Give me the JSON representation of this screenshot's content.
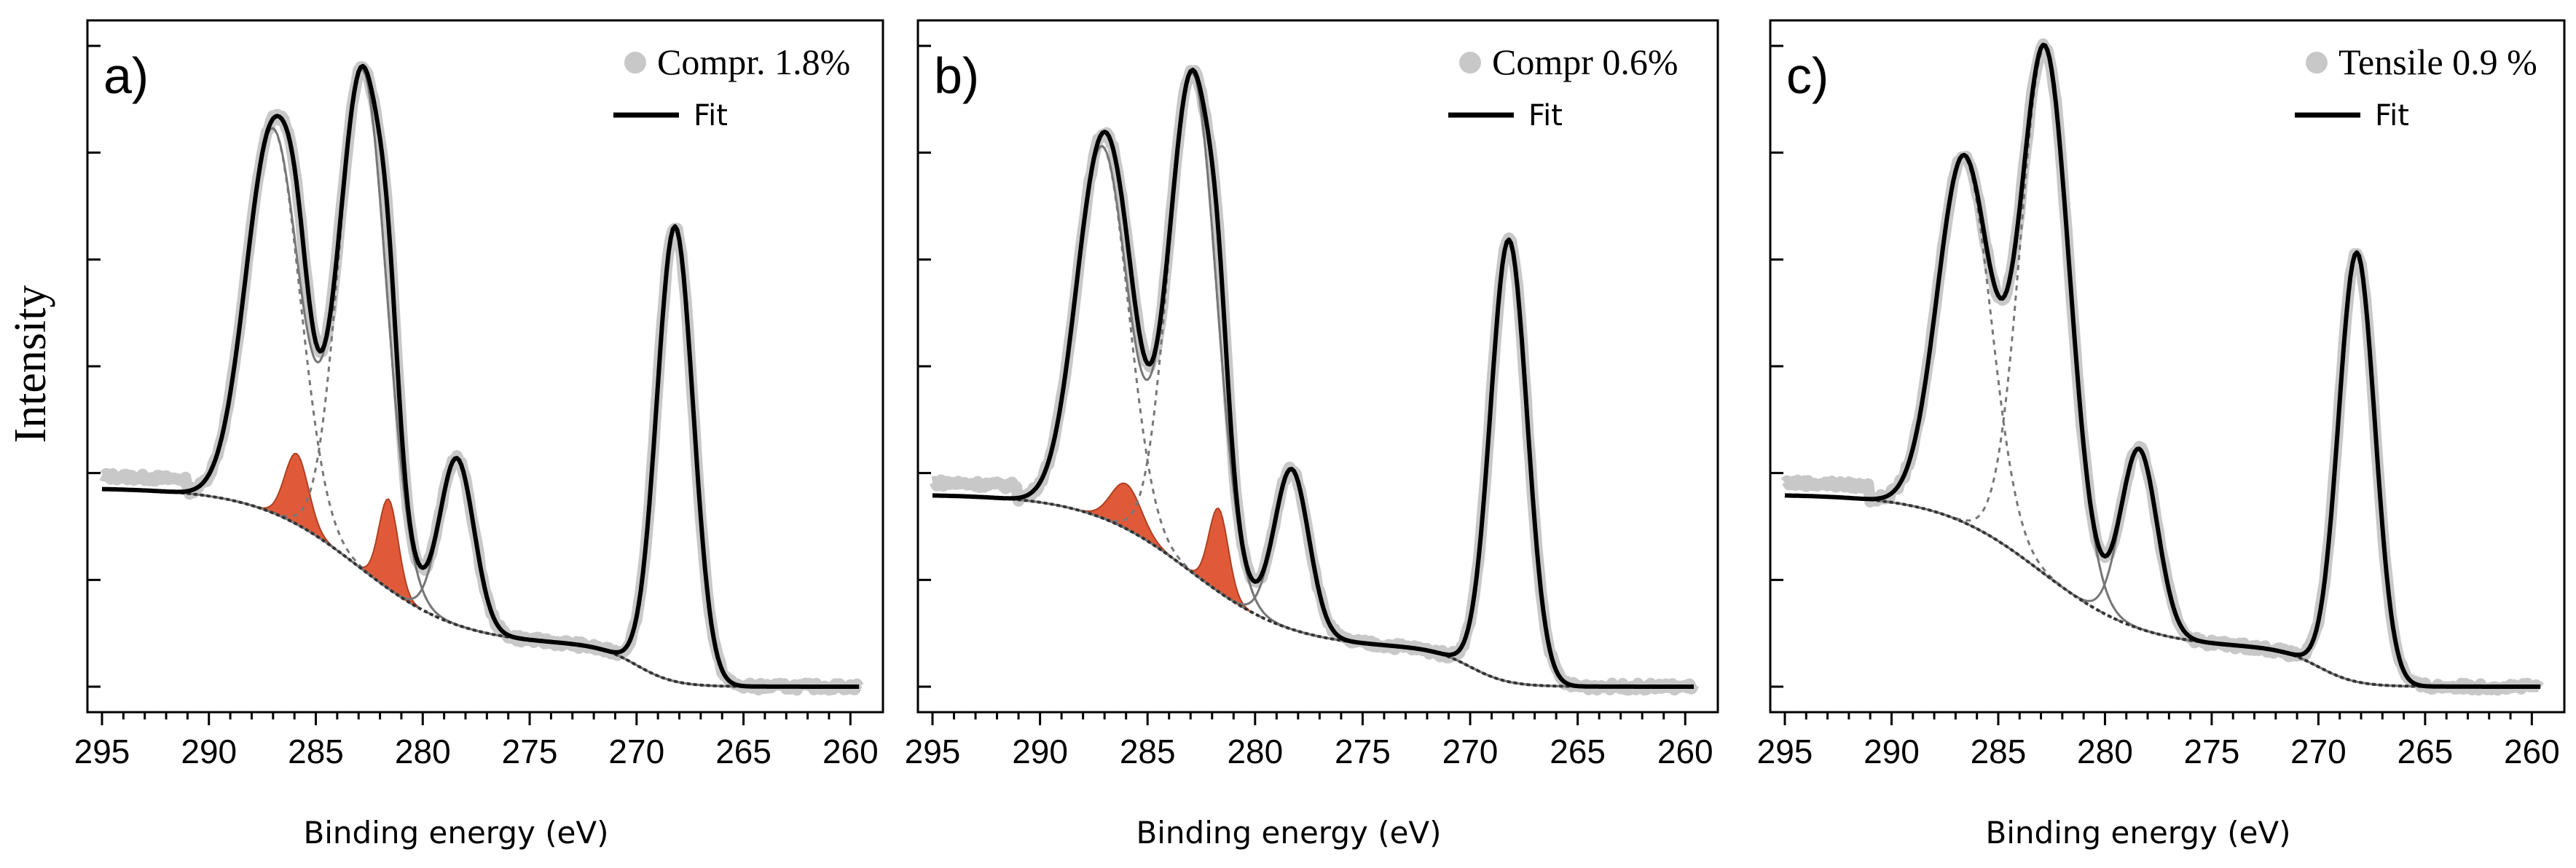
{
  "figure": {
    "ylabel": "Intensity",
    "x_range": [
      295,
      259.5
    ],
    "xticks": [
      295,
      290,
      285,
      280,
      275,
      270,
      265,
      260
    ],
    "colors": {
      "data": "#c8c8c8",
      "fit": "#000000",
      "component": "#777777",
      "background": "#333333",
      "highlight": "#e05a3a"
    }
  },
  "chart_data": [
    {
      "type": "line",
      "panel_label": "a)",
      "title": "",
      "xlabel": "Binding energy (eV)",
      "ylabel": "Intensity",
      "xlim": [
        295,
        259.5
      ],
      "ylim": [
        0,
        1
      ],
      "legend": {
        "placement": "top-right",
        "data_label": "Compr. 1.8%",
        "fit_label": "Fit"
      },
      "baseline": {
        "left": 0.31,
        "mid": 0.065,
        "right": 0.0,
        "step_center": 270.0
      },
      "peaks": [
        {
          "name": "C1",
          "center": 287.0,
          "height": 0.6,
          "sigma": 1.25,
          "style": "dashed"
        },
        {
          "name": "C2",
          "center": 282.8,
          "height": 0.78,
          "sigma": 1.1,
          "style": "dashed"
        },
        {
          "name": "S1",
          "center": 285.9,
          "height": 0.11,
          "sigma": 0.55,
          "style": "filled"
        },
        {
          "name": "S2",
          "center": 281.6,
          "height": 0.14,
          "sigma": 0.45,
          "style": "filled"
        },
        {
          "name": "P3",
          "center": 278.4,
          "height": 0.26,
          "sigma": 0.8,
          "style": "solid"
        },
        {
          "name": "P4",
          "center": 268.2,
          "height": 0.71,
          "sigma": 0.85,
          "style": "none"
        }
      ]
    },
    {
      "type": "line",
      "panel_label": "b)",
      "title": "",
      "xlabel": "Binding energy (eV)",
      "ylabel": "Intensity",
      "xlim": [
        295,
        259.5
      ],
      "ylim": [
        0,
        1
      ],
      "legend": {
        "placement": "top-right",
        "data_label": "Compr 0.6%",
        "fit_label": "Fit"
      },
      "baseline": {
        "left": 0.3,
        "mid": 0.06,
        "right": 0.0,
        "step_center": 270.0
      },
      "peaks": [
        {
          "name": "C1",
          "center": 287.1,
          "height": 0.58,
          "sigma": 1.2,
          "style": "dashed"
        },
        {
          "name": "C2",
          "center": 282.9,
          "height": 0.78,
          "sigma": 1.1,
          "style": "dashed"
        },
        {
          "name": "S1",
          "center": 286.0,
          "height": 0.07,
          "sigma": 0.7,
          "style": "filled"
        },
        {
          "name": "S2",
          "center": 281.7,
          "height": 0.13,
          "sigma": 0.45,
          "style": "filled"
        },
        {
          "name": "P3",
          "center": 278.3,
          "height": 0.25,
          "sigma": 0.8,
          "style": "solid"
        },
        {
          "name": "P4",
          "center": 268.2,
          "height": 0.69,
          "sigma": 0.85,
          "style": "none"
        }
      ]
    },
    {
      "type": "line",
      "panel_label": "c)",
      "title": "",
      "xlabel": "Binding energy (eV)",
      "ylabel": "Intensity",
      "xlim": [
        295,
        259.5
      ],
      "ylim": [
        0,
        1
      ],
      "legend": {
        "placement": "top-right",
        "data_label": "Tensile 0.9 %",
        "fit_label": "Fit"
      },
      "baseline": {
        "left": 0.3,
        "mid": 0.06,
        "right": 0.0,
        "step_center": 270.0
      },
      "peaks": [
        {
          "name": "C1",
          "center": 286.6,
          "height": 0.57,
          "sigma": 1.25,
          "style": "dashed"
        },
        {
          "name": "C2",
          "center": 282.8,
          "height": 0.82,
          "sigma": 1.15,
          "style": "dashed"
        },
        {
          "name": "P3",
          "center": 278.4,
          "height": 0.28,
          "sigma": 0.85,
          "style": "solid"
        },
        {
          "name": "P4",
          "center": 268.2,
          "height": 0.67,
          "sigma": 0.85,
          "style": "none"
        }
      ]
    }
  ]
}
